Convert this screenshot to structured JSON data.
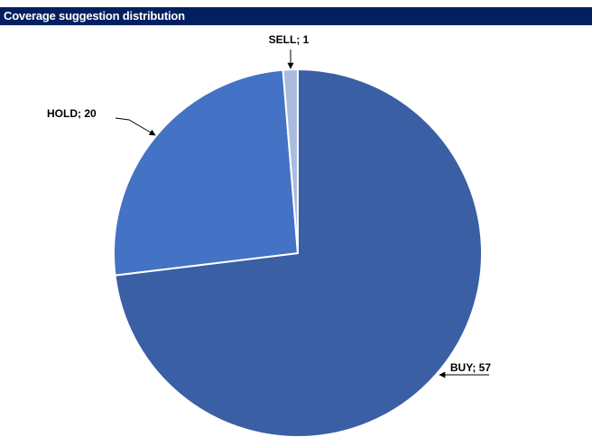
{
  "chart_data": {
    "type": "pie",
    "title": "Coverage suggestion distribution",
    "categories": [
      "BUY",
      "HOLD",
      "SELL"
    ],
    "values": [
      57,
      20,
      1
    ],
    "labels": [
      "BUY; 57",
      "HOLD; 20",
      "SELL; 1"
    ],
    "colors": [
      "#3A5FA5",
      "#4472C4",
      "#A9BCE0"
    ],
    "start_angle_deg": 0,
    "direction": "clockwise",
    "legend": "none",
    "title_bar_color": "#002060"
  }
}
